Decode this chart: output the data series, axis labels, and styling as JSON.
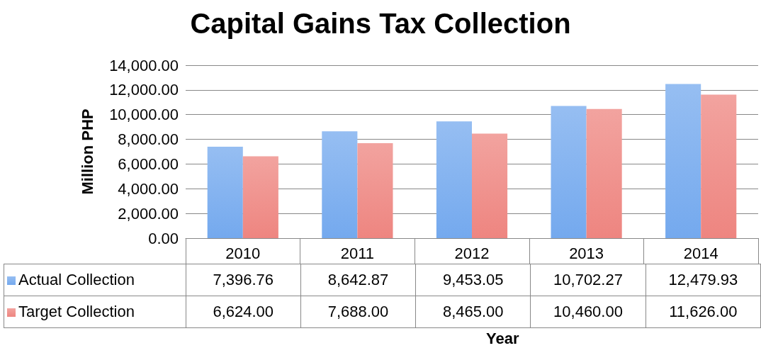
{
  "chart_data": {
    "type": "bar",
    "title": "Capital Gains Tax Collection",
    "xlabel": "Year",
    "ylabel": "Million PHP",
    "categories": [
      "2010",
      "2011",
      "2012",
      "2013",
      "2014"
    ],
    "series": [
      {
        "name": "Actual Collection",
        "color": "#74a9ee",
        "values": [
          7396.76,
          8642.87,
          9453.05,
          10702.27,
          12479.93
        ],
        "value_labels": [
          "7,396.76",
          "8,642.87",
          "9,453.05",
          "10,702.27",
          "12,479.93"
        ]
      },
      {
        "name": "Target Collection",
        "color": "#ee8580",
        "values": [
          6624.0,
          7688.0,
          8465.0,
          10460.0,
          11626.0
        ],
        "value_labels": [
          "6,624.00",
          "7,688.00",
          "8,465.00",
          "10,460.00",
          "11,626.00"
        ]
      }
    ],
    "ylim": [
      0,
      14000
    ],
    "yticks": [
      {
        "value": 0,
        "label": "0.00"
      },
      {
        "value": 2000,
        "label": "2,000.00"
      },
      {
        "value": 4000,
        "label": "4,000.00"
      },
      {
        "value": 6000,
        "label": "6,000.00"
      },
      {
        "value": 8000,
        "label": "8,000.00"
      },
      {
        "value": 10000,
        "label": "10,000.00"
      },
      {
        "value": 12000,
        "label": "12,000.00"
      },
      {
        "value": 14000,
        "label": "14,000.00"
      }
    ],
    "grid": "y",
    "legend": "bottom left"
  }
}
